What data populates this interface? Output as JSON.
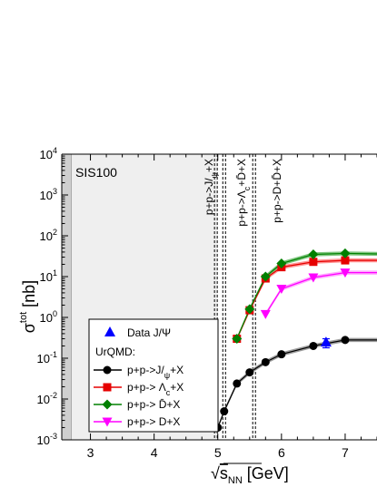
{
  "chart_data": {
    "type": "line",
    "xlabel_root": "√",
    "xlabel_s": "s",
    "xlabel_sub": "NN",
    "xlabel_unit": " [GeV]",
    "ylabel_sigma": "σ",
    "ylabel_sup": "tot",
    "ylabel_unit": " [nb]",
    "xlim": [
      2.55,
      7.5
    ],
    "ylim": [
      0.001,
      10000
    ],
    "y_scale": "log",
    "x_ticks": [
      "3",
      "4",
      "5",
      "6",
      "7"
    ],
    "y_ticks": [
      "10^-3",
      "10^-2",
      "10^-1",
      "10^0",
      "10^1",
      "10^2",
      "10^3",
      "10^4"
    ],
    "region_label": "SIS100",
    "region_range": [
      2.7,
      5.0
    ],
    "thresholds": [
      {
        "x": 4.97,
        "label": "p+p->J/ψ+X",
        "parts": [
          "p+p->J/",
          "ψ",
          "+X"
        ]
      },
      {
        "x": 5.1,
        "label": "p+p->Λc+D̄+X",
        "parts": [
          "p+p->Λ",
          "c",
          "+D̄+X"
        ]
      },
      {
        "x": 5.57,
        "label": "p+p->D+D̄+X",
        "parts": [
          "p+p->D+D̄+X"
        ]
      }
    ],
    "legend": {
      "data_label": "Data J/Ψ",
      "model_label": "UrQMD:",
      "entries": [
        {
          "label": "p+p->J/ψ+X",
          "parts": [
            "p+p->J/",
            "ψ",
            "+X"
          ]
        },
        {
          "label": "p+p-> Λc+X",
          "parts": [
            "p+p-> Λ",
            "c",
            "+X"
          ]
        },
        {
          "label": "p+p-> D̄+X",
          "parts": [
            "p+p-> D̄+X"
          ]
        },
        {
          "label": "p+p-> D+X",
          "parts": [
            "p+p-> D+X"
          ]
        }
      ]
    },
    "series": [
      {
        "marker": "circle",
        "color": "#000000",
        "band": "#8c8c8c",
        "x": [
          5.0,
          5.1,
          5.3,
          5.5,
          5.75,
          6.0,
          6.5,
          7.0,
          7.5
        ],
        "y": [
          0.002,
          0.005,
          0.024,
          0.045,
          0.08,
          0.125,
          0.2,
          0.28,
          0.28
        ]
      },
      {
        "marker": "square",
        "color": "#e60000",
        "band": "#ff8080",
        "x": [
          5.3,
          5.5,
          5.75,
          6.0,
          6.5,
          7.0,
          7.5
        ],
        "y": [
          0.3,
          1.5,
          9.0,
          17.0,
          23.0,
          25.0,
          25.0
        ]
      },
      {
        "marker": "diamond",
        "color": "#008000",
        "band": "#66bb66",
        "x": [
          5.3,
          5.5,
          5.75,
          6.0,
          6.5,
          7.0,
          7.5
        ],
        "y": [
          0.3,
          1.6,
          10.0,
          21.0,
          35.0,
          37.0,
          36.0
        ]
      },
      {
        "marker": "triangle-down",
        "color": "#ff00ff",
        "band": "#ff99ff",
        "x": [
          5.75,
          6.0,
          6.5,
          7.0,
          7.5
        ],
        "y": [
          1.2,
          5.0,
          9.5,
          12.5,
          12.5
        ]
      }
    ],
    "data_points": [
      {
        "x": 6.7,
        "y": 0.25,
        "err_low": 0.18,
        "err_high": 0.3,
        "marker": "triangle-up",
        "color": "#0000ff"
      }
    ]
  }
}
